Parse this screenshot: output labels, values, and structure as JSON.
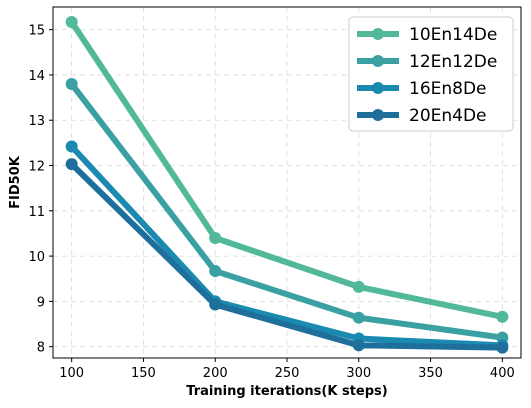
{
  "chart_data": {
    "type": "line",
    "xlabel": "Training iterations(K steps)",
    "ylabel": "FID50K",
    "x": [
      100,
      200,
      300,
      400
    ],
    "xlim": [
      87,
      413
    ],
    "ylim": [
      7.75,
      15.5
    ],
    "xticks": [
      100,
      150,
      200,
      250,
      300,
      350,
      400
    ],
    "yticks": [
      8,
      9,
      10,
      11,
      12,
      13,
      14,
      15
    ],
    "grid": true,
    "legend_position": "top-right",
    "series": [
      {
        "name": "10En14De",
        "color": "#52b89a",
        "values": [
          15.17,
          10.4,
          9.32,
          8.66
        ]
      },
      {
        "name": "12En12De",
        "color": "#3aa0a2",
        "values": [
          13.8,
          9.67,
          8.64,
          8.2
        ]
      },
      {
        "name": "16En8De",
        "color": "#1a8ab0",
        "values": [
          12.42,
          9.0,
          8.18,
          8.03
        ]
      },
      {
        "name": "20En4De",
        "color": "#1f6f9c",
        "values": [
          12.03,
          8.93,
          8.03,
          7.98
        ]
      }
    ]
  }
}
